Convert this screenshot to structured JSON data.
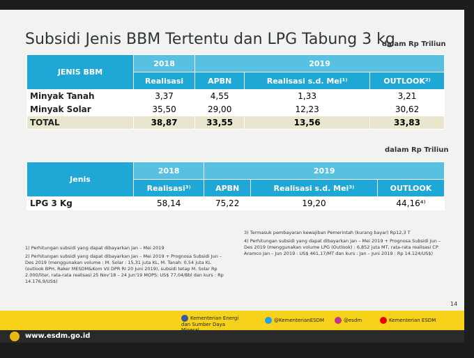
{
  "header": {
    "title": "Subsidi Jenis BBM Tertentu dan LPG Tabung 3 kg",
    "unit": "dalam Rp Triliun"
  },
  "table1": {
    "headers": {
      "jenis": "JENIS BBM",
      "year1": "2018",
      "real1": "Realisasi",
      "year2": "2019",
      "apbn": "APBN",
      "real2": "Realisasi s.d. Mei¹⁾",
      "outlook": "OUTLOOK²⁾"
    },
    "rows": [
      [
        "Minyak Tanah",
        "3,37",
        "4,55",
        "1,33",
        "3,21"
      ],
      [
        "Minyak Solar",
        "35,50",
        "29,00",
        "12,23",
        "30,62"
      ],
      [
        "TOTAL",
        "38,87",
        "33,55",
        "13,56",
        "33,83"
      ]
    ]
  },
  "unit2": "dalam Rp Triliun",
  "table2": {
    "headers": {
      "jenis": "Jenis",
      "year1": "2018",
      "real1": "Realisasi³⁾",
      "year2": "2019",
      "apbn": "APBN",
      "real2": "Realisasi s.d. Mei³⁾",
      "outlook": "OUTLOOK"
    },
    "rows": [
      [
        "LPG 3 Kg",
        "58,14",
        "75,22",
        "19,20",
        "44,16⁴⁾"
      ]
    ]
  },
  "notes_left": [
    "1) Perhitungan subsidi yang dapat dibayarkan Jan – Mei 2019",
    "2) Perhitungan subsidi yang dapat dibayarkan Jan – Mei 2019 + Prognosa Subsidi Jun – Des 2019 (menggunakan volume : M. Solar : 15,31 juta KL, M. Tanah: 0,54 juta KL (outlook BPH, Raker MESDM&Kom VII DPR RI 20 Juni 2019), subsidi tetap M. Solar Rp 2.000/liter, rata-rata realisasi 25 Nov'18 – 24 Jun'19 MOPS: US$ 77,04/Bbl dan kurs : Rp 14.176,9/US$)"
  ],
  "notes_right": [
    "3) Termasuk pembayaran kewajiban Pemerintah (kurang bayar) Rp12,3 T",
    "4) Perhitungan subsidi yang dapat dibayarkan Jan – Mei 2019 + Prognosa Subsidi Jun – Des 2019 (menggunakan volume LPG (Outlook) : 6,852 juta MT, rata-rata realisasi CP Aramco Jan – Jun 2019 : US$ 461,17/MT dan kurs : Jan – Juni 2019 : Rp 14.124/US$)"
  ],
  "footer": {
    "page": "14",
    "facebook": "Kementerian Energi dan Sumber Daya Mineral",
    "twitter": "@KementerianESDM",
    "instagram": "@esdm",
    "youtube": "Kementerian ESDM",
    "url": "www.esdm.go.id"
  }
}
